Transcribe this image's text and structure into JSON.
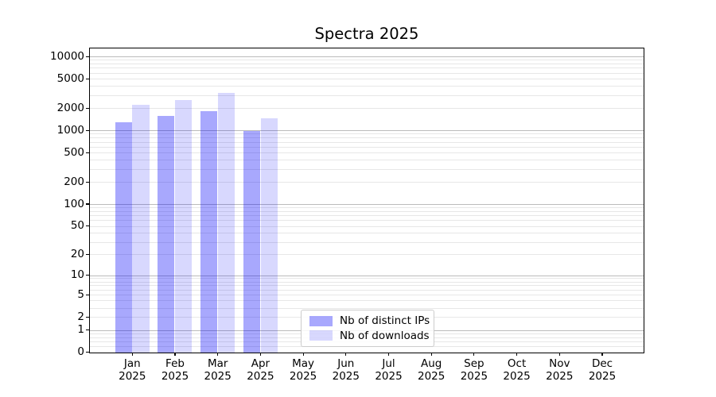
{
  "title": "Spectra 2025",
  "chart_data": {
    "type": "bar",
    "title": "Spectra 2025",
    "yscale": "log10(value+1)",
    "ylim": [
      0,
      12800
    ],
    "yticks": [
      0,
      1,
      2,
      5,
      10,
      20,
      50,
      100,
      200,
      500,
      1000,
      2000,
      5000,
      10000
    ],
    "grid": true,
    "legend_position": "lower center",
    "categories": [
      "Jan 2025",
      "Feb 2025",
      "Mar 2025",
      "Apr 2025",
      "May 2025",
      "Jun 2025",
      "Jul 2025",
      "Aug 2025",
      "Sep 2025",
      "Oct 2025",
      "Nov 2025",
      "Dec 2025"
    ],
    "series": [
      {
        "name": "Nb of distinct IPs",
        "color": "rgba(5,5,250,0.35)",
        "values": [
          1300,
          1580,
          1830,
          990,
          0,
          0,
          0,
          0,
          0,
          0,
          0,
          0
        ]
      },
      {
        "name": "Nb of downloads",
        "color": "rgba(5,5,250,0.155)",
        "values": [
          2250,
          2580,
          3240,
          1480,
          0,
          0,
          0,
          0,
          0,
          0,
          0,
          0
        ]
      }
    ]
  },
  "colors": {
    "background": "#ffffff",
    "axis": "#000000",
    "major_grid": "#bbbbbb",
    "minor_grid": "#e7e7e7",
    "legend_border": "#cccccc",
    "bar_distinct_ips": "rgba(5,5,250,0.35)",
    "bar_downloads": "rgba(5,5,250,0.155)"
  }
}
